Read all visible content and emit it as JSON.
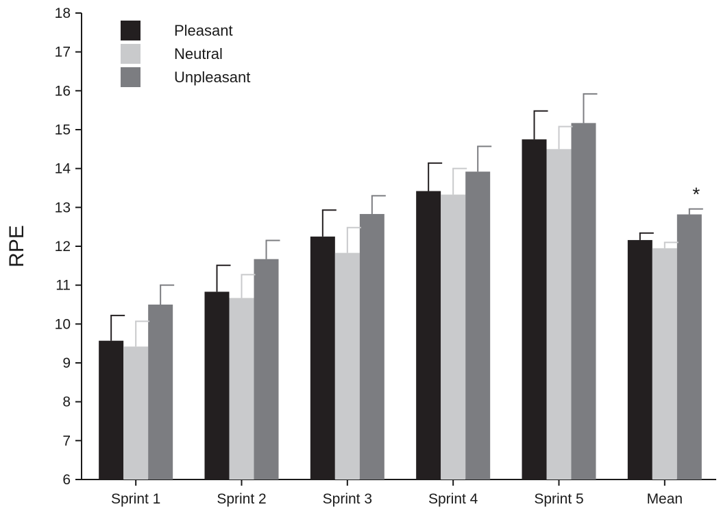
{
  "chart_data": {
    "type": "bar",
    "title": "",
    "xlabel": "",
    "ylabel": "RPE",
    "ylim": [
      6,
      18
    ],
    "yticks": [
      "6",
      "7",
      "8",
      "9",
      "10",
      "11",
      "12",
      "13",
      "14",
      "15",
      "16",
      "17",
      "18"
    ],
    "categories": [
      "Sprint 1",
      "Sprint 2",
      "Sprint 3",
      "Sprint 4",
      "Sprint 5",
      "Mean"
    ],
    "series": [
      {
        "name": "Pleasant",
        "color": "#231f20",
        "values": [
          9.57,
          10.83,
          12.25,
          13.42,
          14.75,
          12.16
        ],
        "errors": [
          0.65,
          0.68,
          0.68,
          0.72,
          0.73,
          0.18
        ]
      },
      {
        "name": "Neutral",
        "color": "#c9cacc",
        "values": [
          9.42,
          10.67,
          11.83,
          13.33,
          14.5,
          11.95
        ],
        "errors": [
          0.65,
          0.6,
          0.65,
          0.67,
          0.58,
          0.15
        ]
      },
      {
        "name": "Unpleasant",
        "color": "#7c7d81",
        "values": [
          10.5,
          11.67,
          12.83,
          13.92,
          15.17,
          12.82
        ],
        "errors": [
          0.5,
          0.48,
          0.47,
          0.65,
          0.75,
          0.14
        ]
      }
    ],
    "grid": false,
    "legend": "top-left",
    "annotations": [
      {
        "text": "*",
        "category": "Mean",
        "series": "Unpleasant"
      }
    ]
  }
}
